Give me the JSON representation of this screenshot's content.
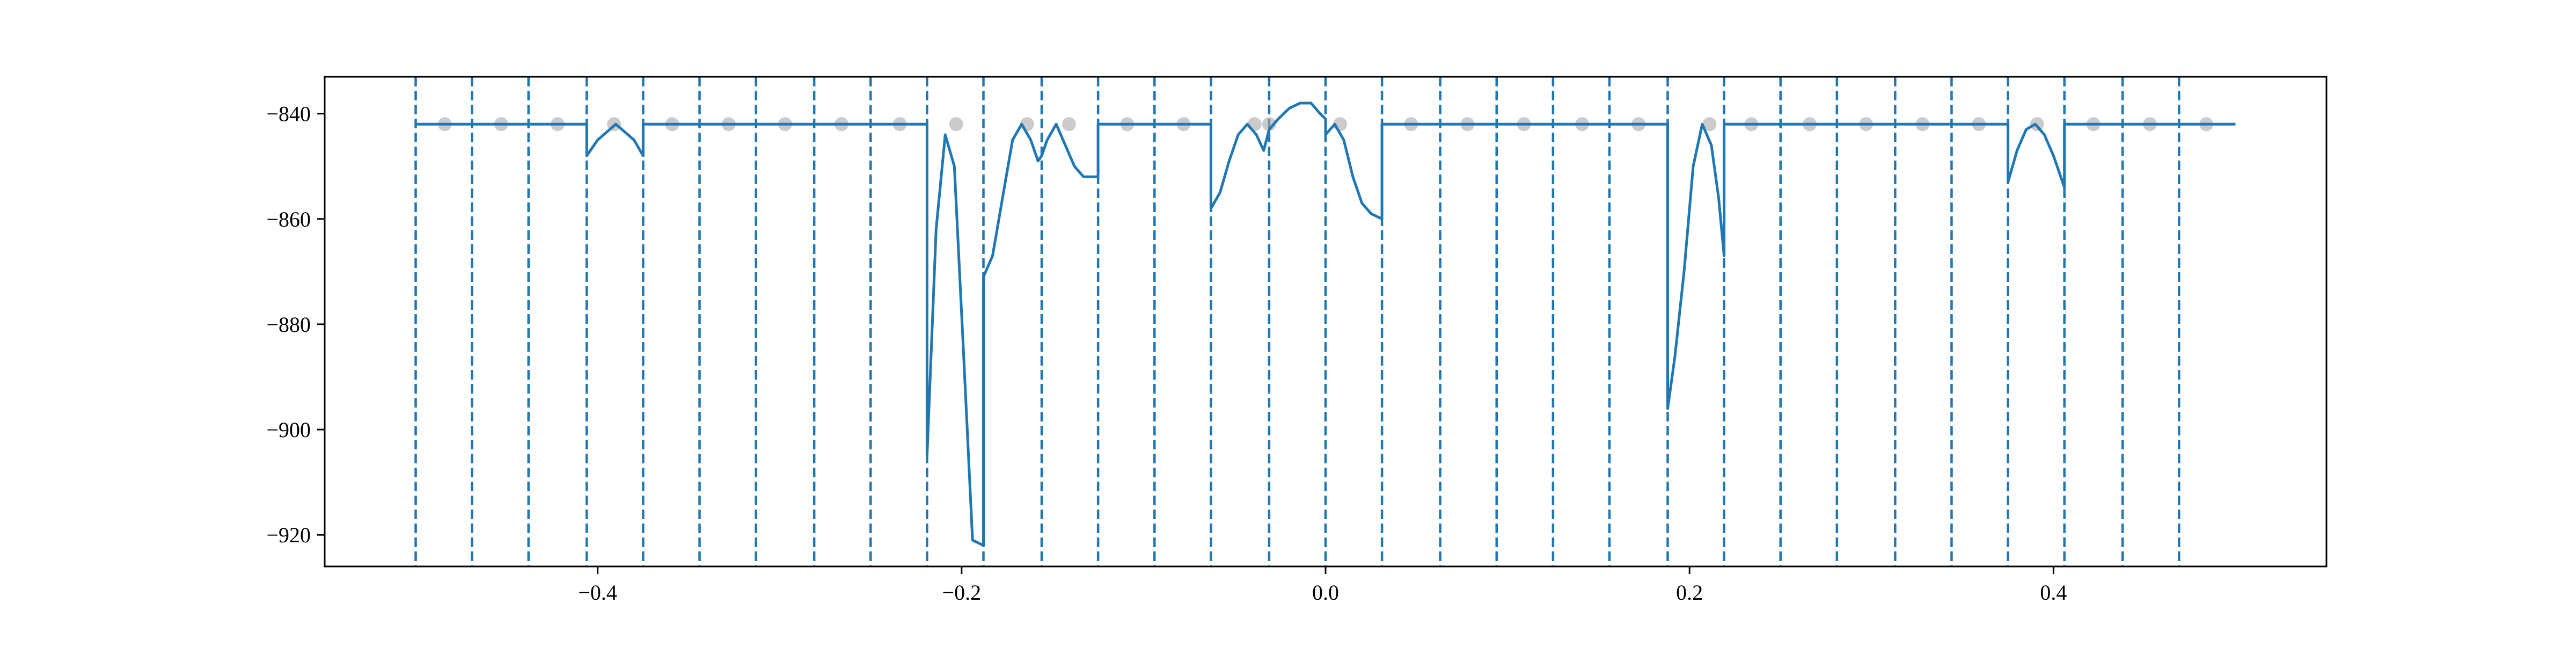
{
  "chart_data": {
    "type": "line",
    "title": "",
    "xlabel": "",
    "ylabel": "",
    "xlim": [
      -0.55,
      0.55
    ],
    "ylim": [
      -926,
      -833
    ],
    "x_ticks": [
      -0.4,
      -0.2,
      0.0,
      0.2,
      0.4
    ],
    "x_tick_labels": [
      "−0.4",
      "−0.2",
      "0.0",
      "0.2",
      "0.4"
    ],
    "y_ticks": [
      -840,
      -860,
      -880,
      -900,
      -920
    ],
    "y_tick_labels": [
      "−840",
      "−860",
      "−880",
      "−900",
      "−920"
    ],
    "grid": false,
    "legend": "none",
    "colors": {
      "line": "#1f77b4",
      "boundaries": "#1f77b4",
      "points": "#a9a9a9",
      "axes": "#000000"
    },
    "segment_boundaries": [
      -0.5,
      -0.469,
      -0.438,
      -0.406,
      -0.375,
      -0.344,
      -0.313,
      -0.281,
      -0.25,
      -0.219,
      -0.188,
      -0.156,
      -0.125,
      -0.094,
      -0.063,
      -0.031,
      0.0,
      0.031,
      0.063,
      0.094,
      0.125,
      0.156,
      0.188,
      0.219,
      0.25,
      0.281,
      0.313,
      0.344,
      0.375,
      0.406,
      0.438,
      0.469
    ],
    "points": {
      "x": [
        -0.484,
        -0.453,
        -0.422,
        -0.391,
        -0.359,
        -0.328,
        -0.297,
        -0.266,
        -0.234,
        -0.203,
        -0.164,
        -0.141,
        -0.109,
        -0.078,
        -0.039,
        -0.031,
        0.008,
        0.047,
        0.078,
        0.109,
        0.141,
        0.172,
        0.211,
        0.234,
        0.266,
        0.297,
        0.328,
        0.359,
        0.391,
        0.422,
        0.453,
        0.484
      ],
      "y": [
        -842,
        -842,
        -842,
        -842,
        -842,
        -842,
        -842,
        -842,
        -842,
        -842,
        -842,
        -842,
        -842,
        -842,
        -842,
        -842,
        -842,
        -842,
        -842,
        -842,
        -842,
        -842,
        -842,
        -842,
        -842,
        -842,
        -842,
        -842,
        -842,
        -842,
        -842,
        -842
      ]
    },
    "series": [
      {
        "x": [
          -0.5,
          -0.406,
          -0.406,
          -0.4,
          -0.39,
          -0.38,
          -0.375,
          -0.375,
          -0.219,
          -0.219,
          -0.214,
          -0.209,
          -0.204,
          -0.199,
          -0.194,
          -0.188,
          -0.188,
          -0.183,
          -0.177,
          -0.172,
          -0.167,
          -0.162,
          -0.158,
          -0.156,
          -0.156,
          -0.153,
          -0.148,
          -0.143,
          -0.138,
          -0.133,
          -0.128,
          -0.125,
          -0.125,
          -0.063,
          -0.063,
          -0.058,
          -0.053,
          -0.048,
          -0.043,
          -0.038,
          -0.034,
          -0.031,
          -0.031,
          -0.026,
          -0.02,
          -0.014,
          -0.008,
          -0.003,
          0.0,
          0.0,
          0.005,
          0.01,
          0.015,
          0.02,
          0.025,
          0.031,
          0.031,
          0.188,
          0.188,
          0.192,
          0.197,
          0.202,
          0.207,
          0.212,
          0.216,
          0.219,
          0.219,
          0.375,
          0.375,
          0.38,
          0.385,
          0.39,
          0.395,
          0.4,
          0.406,
          0.406,
          0.5
        ],
        "y": [
          -842,
          -842,
          -848,
          -845,
          -842,
          -845,
          -848,
          -842,
          -842,
          -905,
          -862,
          -844,
          -850,
          -885,
          -921,
          -922,
          -871,
          -867,
          -855,
          -845,
          -842,
          -845,
          -849,
          -848,
          -848,
          -845,
          -842,
          -846,
          -850,
          -852,
          -852,
          -852,
          -842,
          -842,
          -858,
          -855,
          -849,
          -844,
          -842,
          -844,
          -847,
          -843,
          -843,
          -841,
          -839,
          -838,
          -838,
          -840,
          -841,
          -844,
          -842,
          -845,
          -852,
          -857,
          -859,
          -860,
          -842,
          -842,
          -896,
          -886,
          -870,
          -850,
          -842,
          -846,
          -856,
          -867,
          -842,
          -842,
          -853,
          -847,
          -843,
          -842,
          -844,
          -848,
          -854,
          -842,
          -842
        ]
      }
    ]
  }
}
